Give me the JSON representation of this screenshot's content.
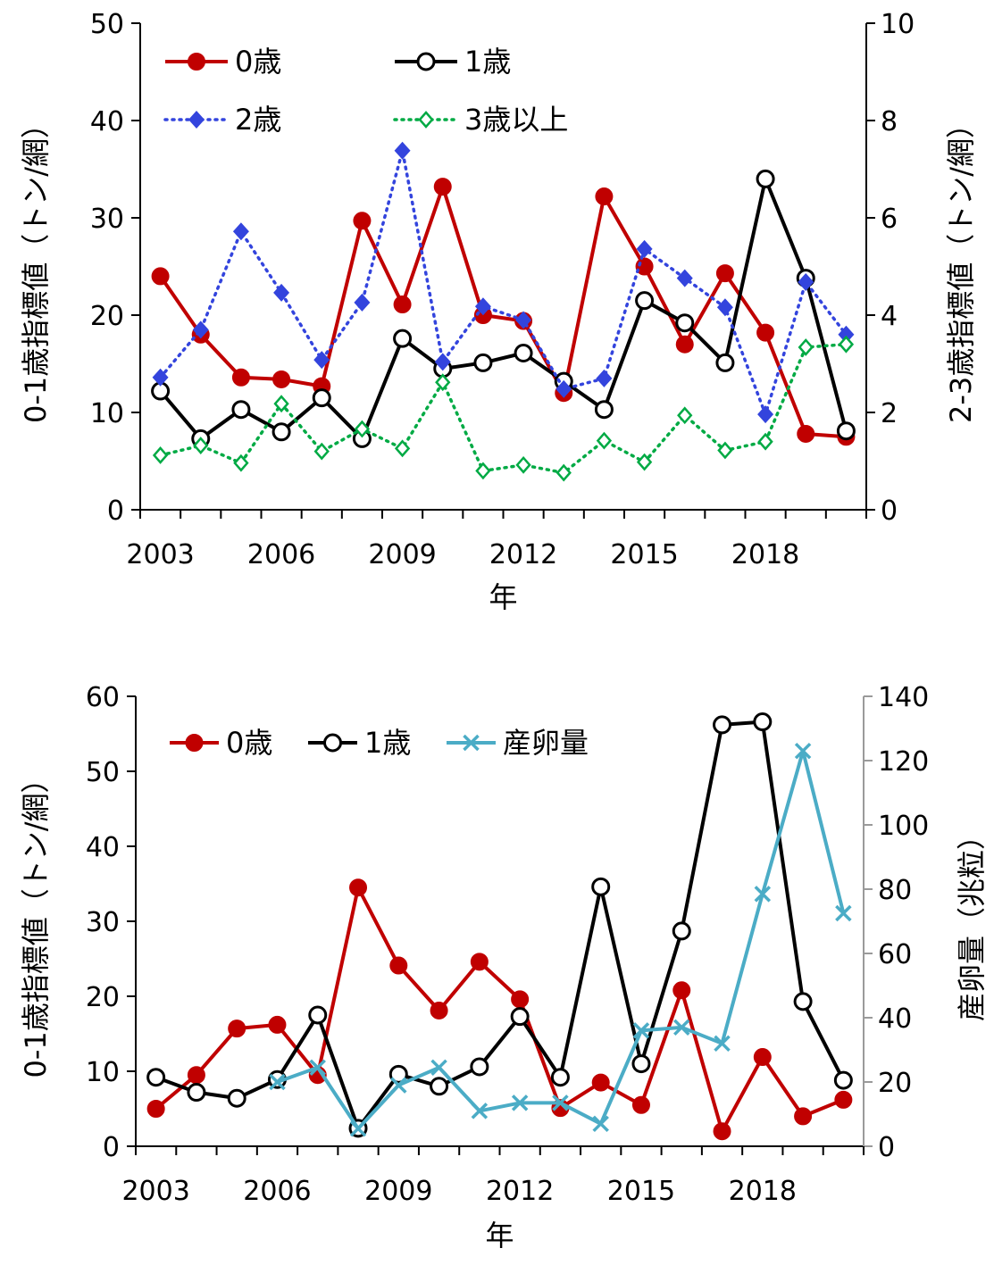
{
  "chart_data": [
    {
      "type": "line",
      "xlabel": "年",
      "ylabel": "0-1歳指標値（トン/網）",
      "y2label": "2-3歳指標値（トン/網）",
      "x": [
        2003,
        2004,
        2005,
        2006,
        2007,
        2008,
        2009,
        2010,
        2011,
        2012,
        2013,
        2014,
        2015,
        2016,
        2017,
        2018,
        2019,
        2020
      ],
      "xticks": [
        "2003",
        "2006",
        "2009",
        "2012",
        "2015",
        "2018"
      ],
      "ylim": [
        0,
        50
      ],
      "yticks": [
        "0",
        "10",
        "20",
        "30",
        "40",
        "50"
      ],
      "y2lim": [
        0,
        10
      ],
      "y2ticks": [
        "0",
        "2",
        "4",
        "6",
        "8",
        "10"
      ],
      "series": [
        {
          "name": "0歳",
          "axis": "left",
          "color": "#c00000",
          "style": "solid",
          "marker": "circle-filled",
          "values": [
            24,
            18,
            13.6,
            13.4,
            12.7,
            29.7,
            21.1,
            33.2,
            20,
            19.4,
            12,
            32.2,
            25,
            17,
            24.3,
            18.2,
            7.8,
            7.5
          ]
        },
        {
          "name": "1歳",
          "axis": "left",
          "color": "#000000",
          "style": "solid",
          "marker": "circle-open",
          "values": [
            12.2,
            7.3,
            10.3,
            8,
            11.5,
            7.3,
            17.6,
            14.5,
            15.1,
            16.1,
            13.2,
            10.3,
            21.5,
            19.2,
            15.1,
            34,
            23.8,
            8.1
          ]
        },
        {
          "name": "2歳",
          "axis": "right",
          "color": "#3344dd",
          "style": "dotted",
          "marker": "diamond-filled",
          "values": [
            2.72,
            3.7,
            5.72,
            4.46,
            3.08,
            4.26,
            7.38,
            3.04,
            4.18,
            3.9,
            2.48,
            2.7,
            5.36,
            4.76,
            4.16,
            1.96,
            4.68,
            3.6
          ]
        },
        {
          "name": "3歳以上",
          "axis": "right",
          "color": "#00aa44",
          "style": "dotted",
          "marker": "diamond-open",
          "values": [
            1.12,
            1.32,
            0.96,
            2.18,
            1.2,
            1.66,
            1.26,
            2.62,
            0.8,
            0.92,
            0.76,
            1.42,
            0.98,
            1.94,
            1.22,
            1.4,
            3.34,
            3.4
          ]
        }
      ]
    },
    {
      "type": "line",
      "xlabel": "年",
      "ylabel": "0-1歳指標値（トン/網）",
      "y2label": "産卵量（兆粒）",
      "x": [
        2003,
        2004,
        2005,
        2006,
        2007,
        2008,
        2009,
        2010,
        2011,
        2012,
        2013,
        2014,
        2015,
        2016,
        2017,
        2018,
        2019,
        2020
      ],
      "xticks": [
        "2003",
        "2006",
        "2009",
        "2012",
        "2015",
        "2018"
      ],
      "ylim": [
        0,
        60
      ],
      "yticks": [
        "0",
        "10",
        "20",
        "30",
        "40",
        "50",
        "60"
      ],
      "y2lim": [
        0,
        140
      ],
      "y2ticks": [
        "0",
        "20",
        "40",
        "60",
        "80",
        "100",
        "120",
        "140"
      ],
      "series": [
        {
          "name": "0歳",
          "axis": "left",
          "color": "#c00000",
          "style": "solid",
          "marker": "circle-filled",
          "values": [
            5,
            9.5,
            15.7,
            16.2,
            9.5,
            34.5,
            24.1,
            18.1,
            24.6,
            19.6,
            5.1,
            8.5,
            5.5,
            20.8,
            2,
            11.9,
            4,
            6.2
          ]
        },
        {
          "name": "1歳",
          "axis": "left",
          "color": "#000000",
          "style": "solid",
          "marker": "circle-open",
          "values": [
            9.2,
            7.2,
            6.4,
            8.9,
            17.5,
            2.4,
            9.6,
            8,
            10.6,
            17.3,
            9.2,
            34.6,
            11,
            28.7,
            56.2,
            56.6,
            19.3,
            8.8
          ]
        },
        {
          "name": "産卵量",
          "axis": "right",
          "color": "#4bacc6",
          "style": "solid",
          "marker": "x",
          "x": [
            2006,
            2007,
            2008,
            2009,
            2010,
            2011,
            2012,
            2013,
            2014,
            2015,
            2016,
            2017,
            2018,
            2019,
            2020
          ],
          "values": [
            20,
            24.5,
            5.5,
            19,
            24.5,
            11,
            13.5,
            13.5,
            7,
            36,
            37,
            32,
            78.5,
            123,
            72.5
          ]
        }
      ]
    }
  ]
}
